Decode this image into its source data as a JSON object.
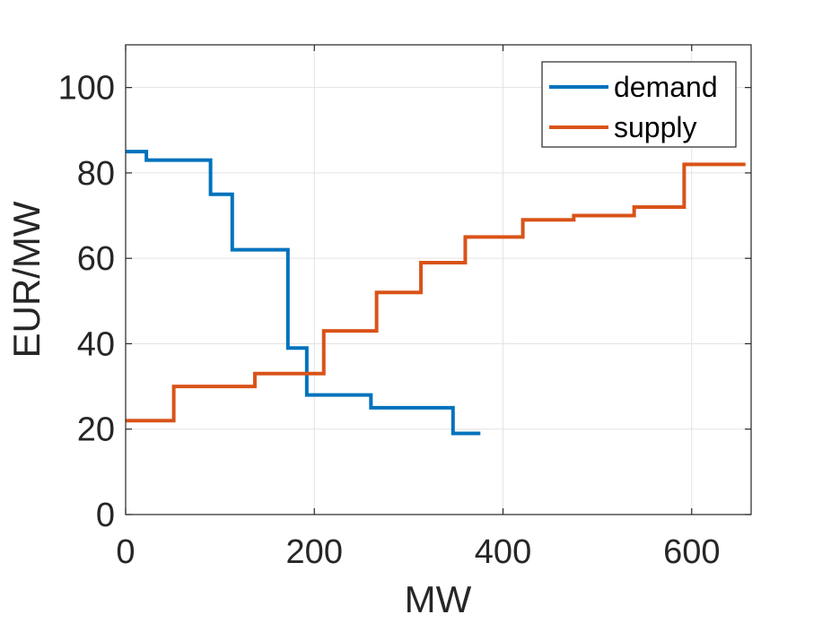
{
  "chart_data": {
    "type": "line",
    "step": true,
    "title": "",
    "xlabel": "MW",
    "ylabel": "EUR/MW",
    "xlim": [
      0,
      663
    ],
    "ylim": [
      0,
      110
    ],
    "xticks": [
      0,
      200,
      400,
      600
    ],
    "yticks": [
      0,
      20,
      40,
      60,
      80,
      100
    ],
    "xtick_labels": [
      "0",
      "200",
      "400",
      "600"
    ],
    "ytick_labels": [
      "0",
      "20",
      "40",
      "60",
      "80",
      "100"
    ],
    "grid": true,
    "legend_position": "top-right",
    "series": [
      {
        "name": "demand",
        "color": "#0072BD",
        "breakpoints": [
          0,
          22,
          90,
          113,
          172,
          192,
          260,
          347,
          376
        ],
        "levels": [
          85,
          83,
          75,
          62,
          39,
          28,
          25,
          19
        ]
      },
      {
        "name": "supply",
        "color": "#D95319",
        "breakpoints": [
          0,
          51,
          137,
          210,
          266,
          313,
          360,
          421,
          475,
          539,
          592,
          657
        ],
        "levels": [
          22,
          30,
          33,
          43,
          52,
          59,
          65,
          69,
          70,
          72,
          82
        ]
      }
    ]
  }
}
